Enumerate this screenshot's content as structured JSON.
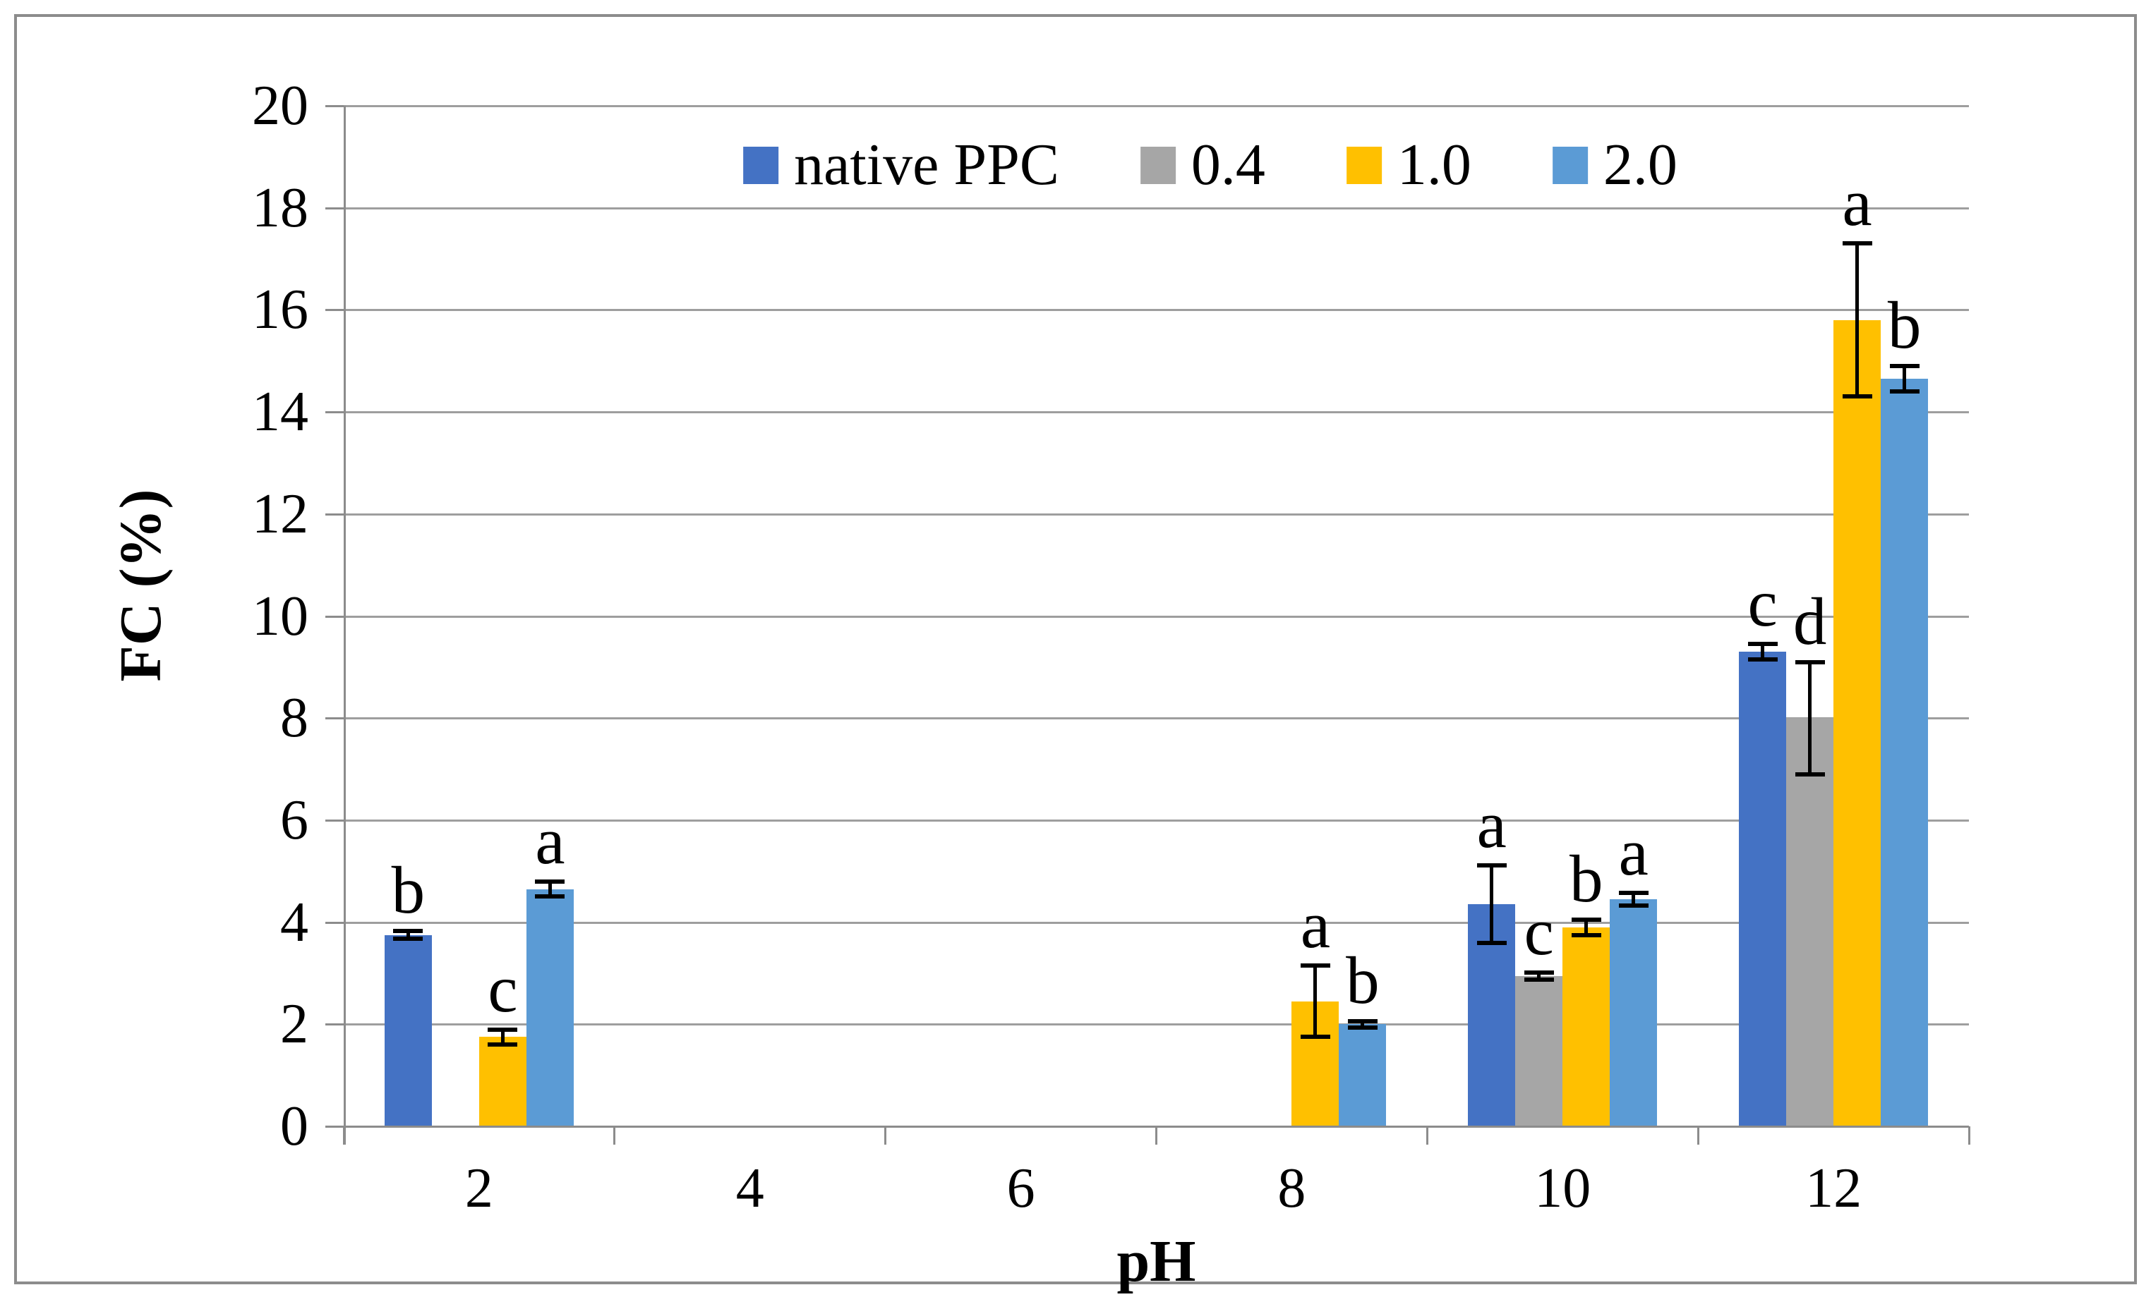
{
  "figure": {
    "background": "#ffffff",
    "border_color": "#8c8c8c"
  },
  "chart_data": {
    "type": "bar",
    "title": "",
    "xlabel": "pH",
    "ylabel": "FC (%)",
    "ylim": [
      0,
      20
    ],
    "ytick_step": 2,
    "yticks": [
      0,
      2,
      4,
      6,
      8,
      10,
      12,
      14,
      16,
      18,
      20
    ],
    "grid": true,
    "legend_position": "top-center-inside",
    "categories": [
      "2",
      "4",
      "6",
      "8",
      "10",
      "12"
    ],
    "series": [
      {
        "name": "native PPC",
        "color": "#4472C4",
        "values": [
          3.75,
          0,
          0,
          0,
          4.35,
          9.3
        ],
        "errors": [
          0.08,
          0,
          0,
          0,
          0.76,
          0.15
        ],
        "sig_letters": [
          "b",
          "",
          "",
          "",
          "a",
          "c"
        ]
      },
      {
        "name": "0.4",
        "color": "#A6A6A6",
        "values": [
          0,
          0,
          0,
          0,
          2.95,
          8.0
        ],
        "errors": [
          0,
          0,
          0,
          0,
          0.07,
          1.1
        ],
        "sig_letters": [
          "",
          "",
          "",
          "",
          "c",
          "d"
        ]
      },
      {
        "name": "1.0",
        "color": "#FFC000",
        "values": [
          1.75,
          0,
          0,
          2.45,
          3.9,
          15.8
        ],
        "errors": [
          0.15,
          0,
          0,
          0.7,
          0.15,
          1.5
        ],
        "sig_letters": [
          "c",
          "",
          "",
          "a",
          "b",
          "a"
        ]
      },
      {
        "name": "2.0",
        "color": "#5B9BD5",
        "values": [
          4.65,
          0,
          0,
          2.0,
          4.45,
          14.65
        ],
        "errors": [
          0.15,
          0,
          0,
          0.06,
          0.12,
          0.25
        ],
        "sig_letters": [
          "a",
          "",
          "",
          "b",
          "a",
          "b"
        ]
      }
    ]
  }
}
